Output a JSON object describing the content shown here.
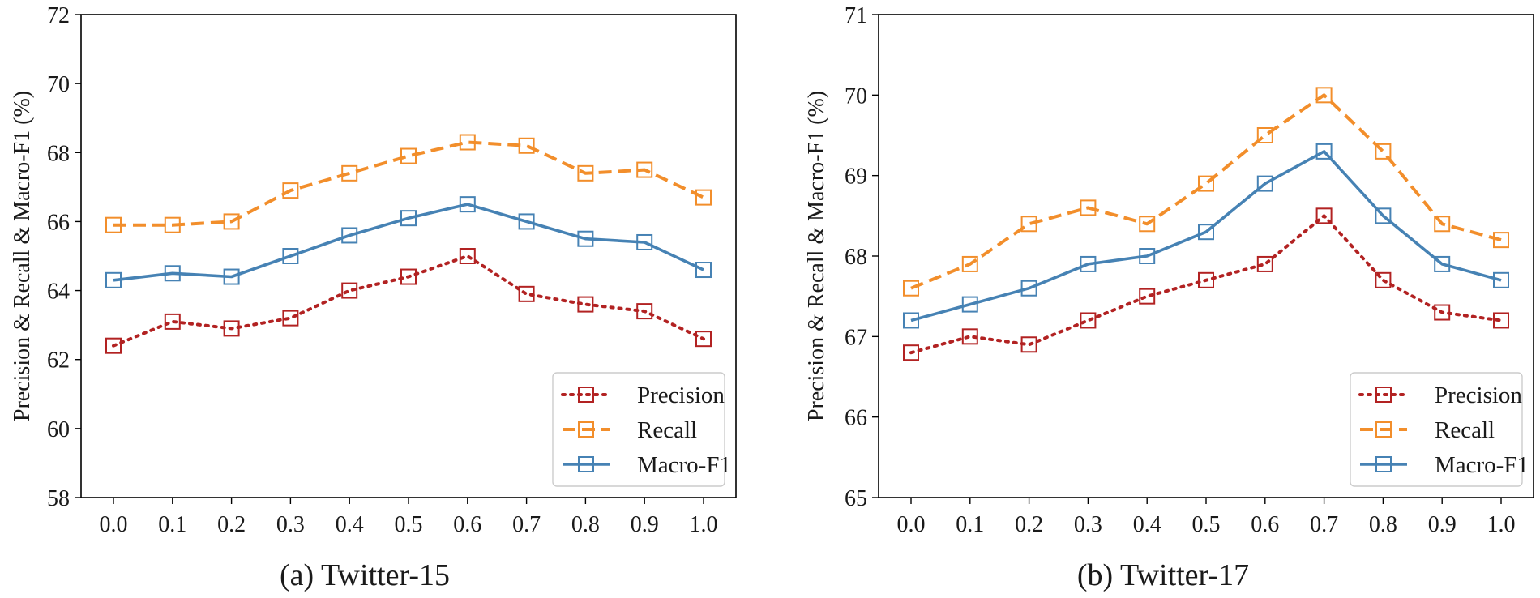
{
  "chart_data": [
    {
      "type": "line",
      "caption": "(a) Twitter-15",
      "ylabel": "Precision & Recall & Macro-F1 (%)",
      "x": [
        "0.0",
        "0.1",
        "0.2",
        "0.3",
        "0.4",
        "0.5",
        "0.6",
        "0.7",
        "0.8",
        "0.9",
        "1.0"
      ],
      "ylim": [
        58,
        72
      ],
      "yticks": [
        58,
        60,
        62,
        64,
        66,
        68,
        70,
        72
      ],
      "legend_position": "bottom-right",
      "series": [
        {
          "name": "Precision",
          "color": "#b22222",
          "style": "dotted",
          "values": [
            62.4,
            63.1,
            62.9,
            63.2,
            64.0,
            64.4,
            65.0,
            63.9,
            63.6,
            63.4,
            62.6
          ]
        },
        {
          "name": "Recall",
          "color": "#f28e2b",
          "style": "dashed",
          "values": [
            65.9,
            65.9,
            66.0,
            66.9,
            67.4,
            67.9,
            68.3,
            68.2,
            67.4,
            67.5,
            66.7
          ]
        },
        {
          "name": "Macro-F1",
          "color": "#4682b4",
          "style": "solid",
          "values": [
            64.3,
            64.5,
            64.4,
            65.0,
            65.6,
            66.1,
            66.5,
            66.0,
            65.5,
            65.4,
            64.6
          ]
        }
      ]
    },
    {
      "type": "line",
      "caption": "(b) Twitter-17",
      "ylabel": "Precision & Recall & Macro-F1 (%)",
      "x": [
        "0.0",
        "0.1",
        "0.2",
        "0.3",
        "0.4",
        "0.5",
        "0.6",
        "0.7",
        "0.8",
        "0.9",
        "1.0"
      ],
      "ylim": [
        65,
        71
      ],
      "yticks": [
        65,
        66,
        67,
        68,
        69,
        70,
        71
      ],
      "legend_position": "bottom-right",
      "series": [
        {
          "name": "Precision",
          "color": "#b22222",
          "style": "dotted",
          "values": [
            66.8,
            67.0,
            66.9,
            67.2,
            67.5,
            67.7,
            67.9,
            68.5,
            67.7,
            67.3,
            67.2
          ]
        },
        {
          "name": "Recall",
          "color": "#f28e2b",
          "style": "dashed",
          "values": [
            67.6,
            67.9,
            68.4,
            68.6,
            68.4,
            68.9,
            69.5,
            70.0,
            69.3,
            68.4,
            68.2
          ]
        },
        {
          "name": "Macro-F1",
          "color": "#4682b4",
          "style": "solid",
          "values": [
            67.2,
            67.4,
            67.6,
            67.9,
            68.0,
            68.3,
            68.9,
            69.3,
            68.5,
            67.9,
            67.7
          ]
        }
      ]
    }
  ]
}
